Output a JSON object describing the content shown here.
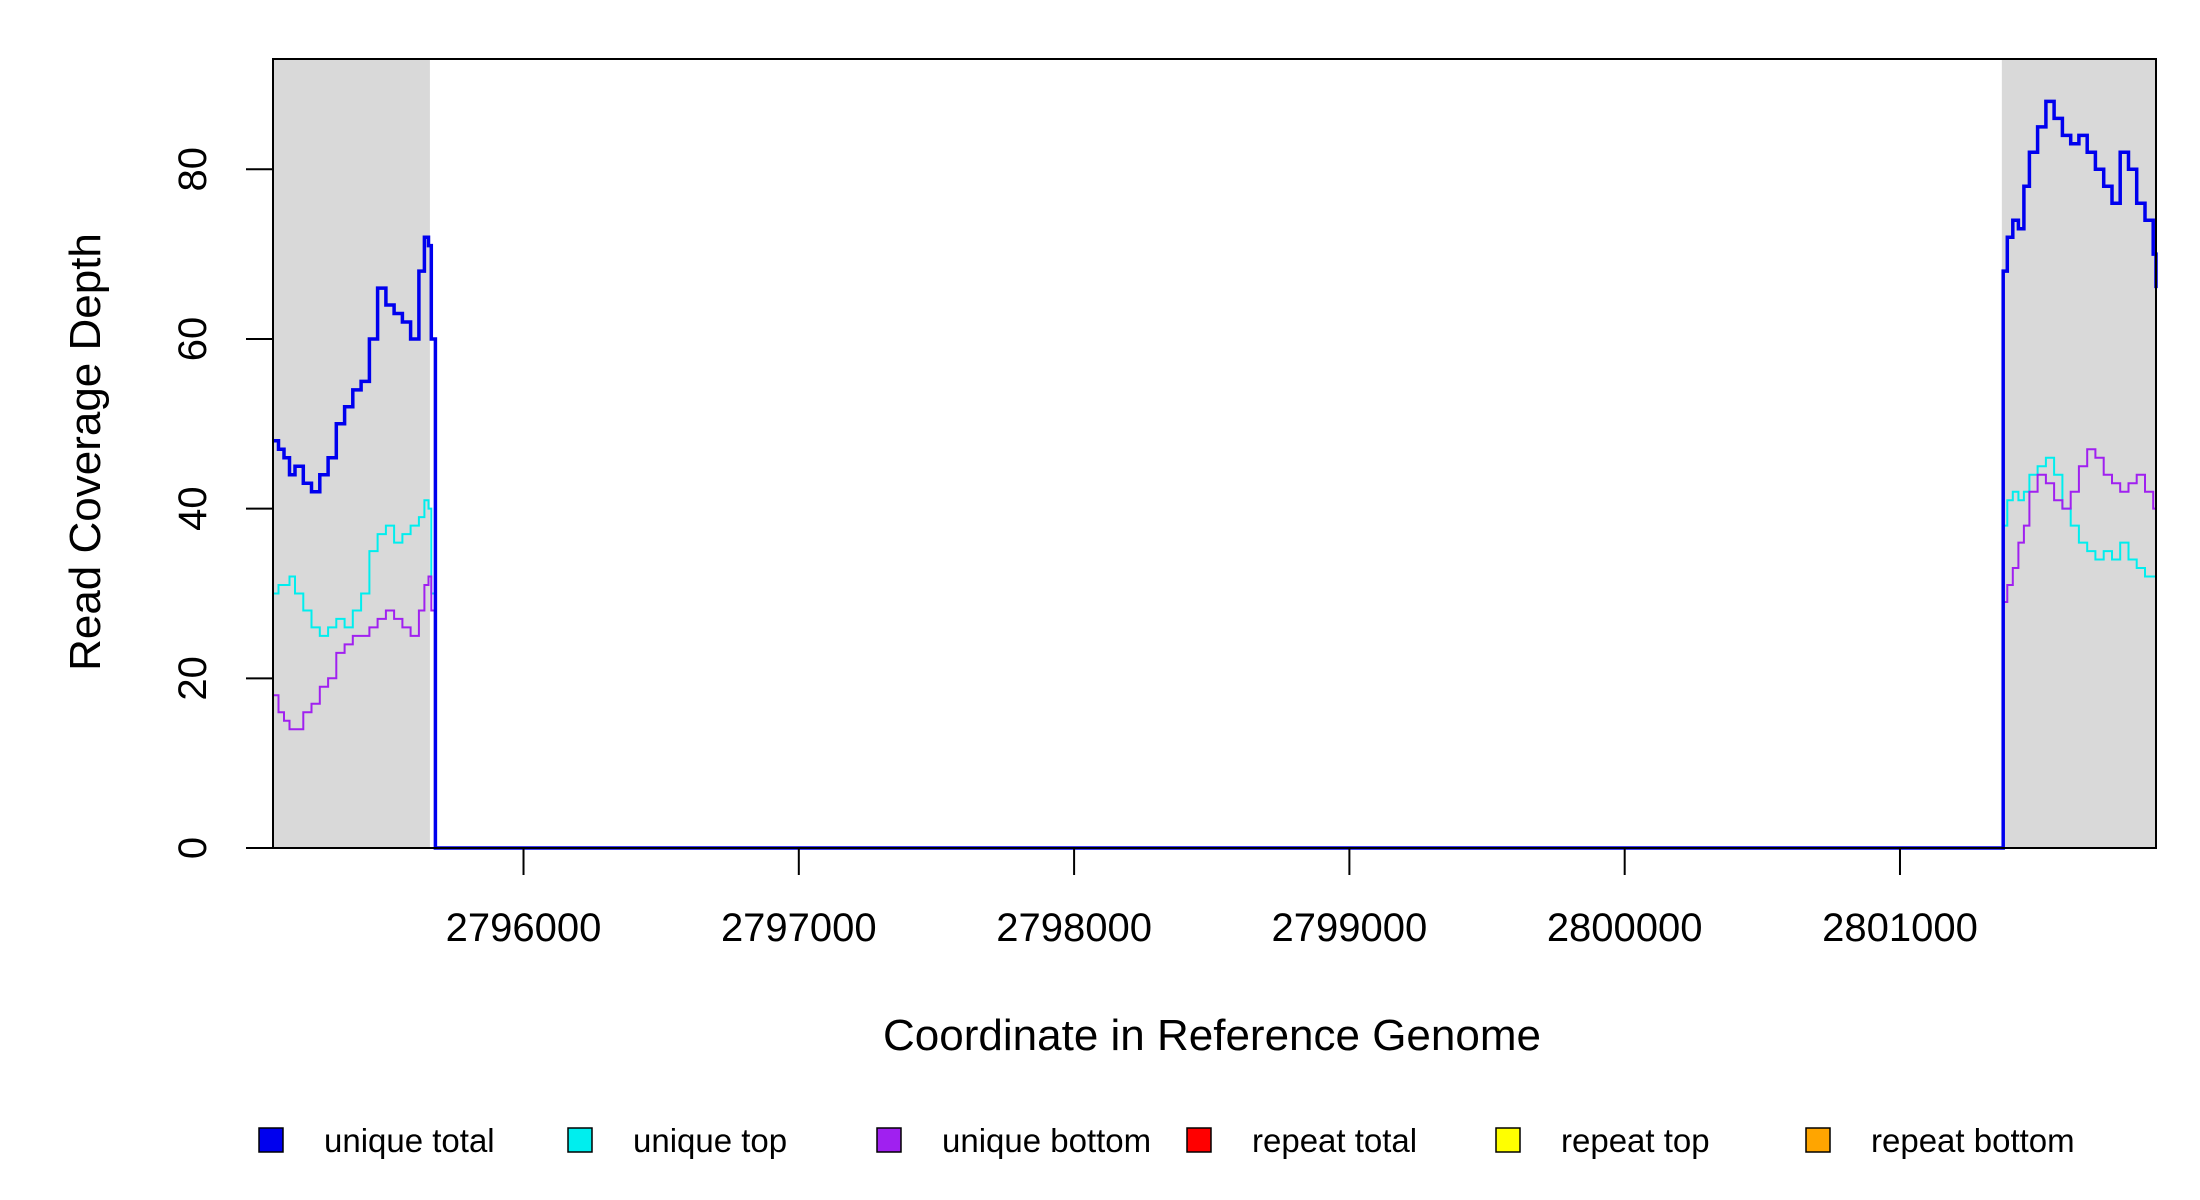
{
  "chart_data": {
    "type": "line",
    "xlabel": "Coordinate in Reference Genome",
    "ylabel": "Read Coverage Depth",
    "xlim": [
      2795090,
      2801930
    ],
    "ylim": [
      0,
      93
    ],
    "x_ticks": [
      2796000,
      2797000,
      2798000,
      2799000,
      2800000,
      2801000
    ],
    "x_tick_labels": [
      "2796000",
      "2797000",
      "2798000",
      "2799000",
      "2800000",
      "2801000"
    ],
    "y_ticks": [
      0,
      20,
      40,
      60,
      80
    ],
    "y_tick_labels": [
      "0",
      "20",
      "40",
      "60",
      "80"
    ],
    "shaded_regions": [
      [
        2795090,
        2795660
      ],
      [
        2801370,
        2801930
      ]
    ],
    "shade_color": "#d9d9d9",
    "legend_position": "bottom",
    "series": [
      {
        "name": "unique total",
        "color": "#0000ee",
        "x": [
          2795090,
          2795110,
          2795130,
          2795150,
          2795170,
          2795200,
          2795230,
          2795260,
          2795290,
          2795320,
          2795350,
          2795380,
          2795410,
          2795440,
          2795470,
          2795500,
          2795530,
          2795560,
          2795590,
          2795620,
          2795640,
          2795655,
          2795665,
          2795680,
          2801360,
          2801375,
          2801390,
          2801410,
          2801430,
          2801450,
          2801470,
          2801500,
          2801530,
          2801560,
          2801590,
          2801620,
          2801650,
          2801680,
          2801710,
          2801740,
          2801770,
          2801800,
          2801830,
          2801860,
          2801890,
          2801920,
          2801930
        ],
        "y": [
          48,
          47,
          46,
          44,
          45,
          43,
          42,
          44,
          46,
          50,
          52,
          54,
          55,
          60,
          66,
          64,
          63,
          62,
          60,
          68,
          72,
          71,
          60,
          0,
          0,
          68,
          72,
          74,
          73,
          78,
          82,
          85,
          88,
          86,
          84,
          83,
          84,
          82,
          80,
          78,
          76,
          82,
          80,
          76,
          74,
          70,
          66
        ]
      },
      {
        "name": "unique top",
        "color": "#00eeee",
        "x": [
          2795090,
          2795110,
          2795130,
          2795150,
          2795170,
          2795200,
          2795230,
          2795260,
          2795290,
          2795320,
          2795350,
          2795380,
          2795410,
          2795440,
          2795470,
          2795500,
          2795530,
          2795560,
          2795590,
          2795620,
          2795640,
          2795655,
          2795665,
          2795680,
          2801360,
          2801375,
          2801390,
          2801410,
          2801430,
          2801450,
          2801470,
          2801500,
          2801530,
          2801560,
          2801590,
          2801620,
          2801650,
          2801680,
          2801710,
          2801740,
          2801770,
          2801800,
          2801830,
          2801860,
          2801890,
          2801920,
          2801930
        ],
        "y": [
          30,
          31,
          31,
          32,
          30,
          28,
          26,
          25,
          26,
          27,
          26,
          28,
          30,
          35,
          37,
          38,
          36,
          37,
          38,
          39,
          41,
          40,
          30,
          0,
          0,
          38,
          41,
          42,
          41,
          42,
          44,
          45,
          46,
          44,
          40,
          38,
          36,
          35,
          34,
          35,
          34,
          36,
          34,
          33,
          32,
          32,
          30
        ]
      },
      {
        "name": "unique bottom",
        "color": "#a020f0",
        "x": [
          2795090,
          2795110,
          2795130,
          2795150,
          2795170,
          2795200,
          2795230,
          2795260,
          2795290,
          2795320,
          2795350,
          2795380,
          2795410,
          2795440,
          2795470,
          2795500,
          2795530,
          2795560,
          2795590,
          2795620,
          2795640,
          2795655,
          2795665,
          2795680,
          2801360,
          2801375,
          2801390,
          2801410,
          2801430,
          2801450,
          2801470,
          2801500,
          2801530,
          2801560,
          2801590,
          2801620,
          2801650,
          2801680,
          2801710,
          2801740,
          2801770,
          2801800,
          2801830,
          2801860,
          2801890,
          2801920,
          2801930
        ],
        "y": [
          18,
          16,
          15,
          14,
          14,
          16,
          17,
          19,
          20,
          23,
          24,
          25,
          25,
          26,
          27,
          28,
          27,
          26,
          25,
          28,
          31,
          32,
          28,
          0,
          0,
          29,
          31,
          33,
          36,
          38,
          42,
          44,
          43,
          41,
          40,
          42,
          45,
          47,
          46,
          44,
          43,
          42,
          43,
          44,
          42,
          40,
          39
        ]
      },
      {
        "name": "repeat total",
        "color": "#ff0000",
        "x": [
          2795090,
          2801930
        ],
        "y": [
          0,
          0
        ]
      },
      {
        "name": "repeat top",
        "color": "#ffff00",
        "x": [
          2795090,
          2801930
        ],
        "y": [
          0,
          0
        ]
      },
      {
        "name": "repeat bottom",
        "color": "#ffa500",
        "x": [
          2795090,
          2801930
        ],
        "y": [
          0,
          0
        ]
      }
    ]
  }
}
